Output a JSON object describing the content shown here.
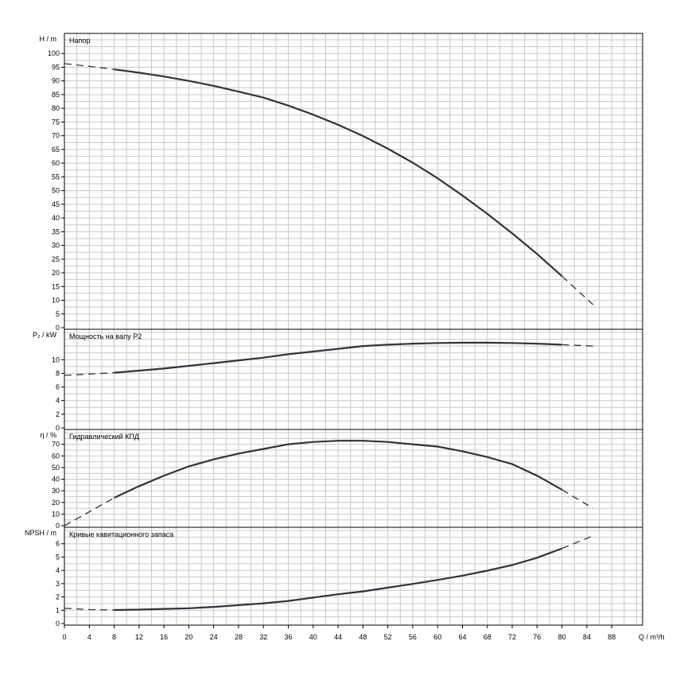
{
  "chart_data": {
    "type": "line",
    "x_axis": {
      "label": "Q / m³/h",
      "min": 0,
      "max": 92,
      "ticks": [
        0,
        4,
        8,
        12,
        16,
        20,
        24,
        28,
        32,
        36,
        40,
        44,
        48,
        52,
        56,
        60,
        64,
        68,
        72,
        76,
        80,
        84,
        88
      ]
    },
    "grid": true,
    "panels": [
      {
        "id": "head",
        "title": "Напор",
        "ylabel": "H / m",
        "ylim": [
          0,
          105
        ],
        "yticks": [
          0,
          5,
          10,
          15,
          20,
          25,
          30,
          35,
          40,
          45,
          50,
          55,
          60,
          65,
          70,
          75,
          80,
          85,
          90,
          95,
          100
        ],
        "solid_range": [
          8,
          80
        ],
        "points": [
          [
            0,
            96.3
          ],
          [
            4,
            95.3
          ],
          [
            8,
            94.2
          ],
          [
            12,
            93.0
          ],
          [
            16,
            91.6
          ],
          [
            20,
            90.0
          ],
          [
            24,
            88.2
          ],
          [
            28,
            86.1
          ],
          [
            32,
            83.9
          ],
          [
            36,
            81.0
          ],
          [
            40,
            77.7
          ],
          [
            44,
            74.0
          ],
          [
            48,
            69.9
          ],
          [
            52,
            65.3
          ],
          [
            56,
            60.2
          ],
          [
            60,
            54.5
          ],
          [
            64,
            48.2
          ],
          [
            68,
            41.5
          ],
          [
            72,
            34.4
          ],
          [
            76,
            26.9
          ],
          [
            80,
            18.8
          ],
          [
            82.5,
            13.6
          ],
          [
            85,
            8.4
          ]
        ]
      },
      {
        "id": "power",
        "title": "Мощность на валу P2",
        "ylabel": "P₂ / kW",
        "ylim": [
          0,
          14
        ],
        "yticks": [
          0,
          2,
          4,
          6,
          8,
          10
        ],
        "solid_range": [
          8,
          80
        ],
        "points": [
          [
            0,
            7.7
          ],
          [
            4,
            7.9
          ],
          [
            8,
            8.1
          ],
          [
            12,
            8.4
          ],
          [
            16,
            8.7
          ],
          [
            20,
            9.1
          ],
          [
            24,
            9.5
          ],
          [
            28,
            9.9
          ],
          [
            32,
            10.3
          ],
          [
            36,
            10.8
          ],
          [
            40,
            11.2
          ],
          [
            44,
            11.6
          ],
          [
            48,
            12.0
          ],
          [
            52,
            12.2
          ],
          [
            56,
            12.35
          ],
          [
            60,
            12.45
          ],
          [
            64,
            12.5
          ],
          [
            68,
            12.5
          ],
          [
            72,
            12.45
          ],
          [
            76,
            12.35
          ],
          [
            80,
            12.2
          ],
          [
            85,
            12.0
          ]
        ]
      },
      {
        "id": "efficiency",
        "title": "Гидравлический КПД",
        "ylabel": "η / %",
        "ylim": [
          0,
          80
        ],
        "yticks": [
          0,
          10,
          20,
          30,
          40,
          50,
          60,
          70
        ],
        "solid_range": [
          8,
          80
        ],
        "points": [
          [
            0,
            0
          ],
          [
            4,
            12
          ],
          [
            8,
            24
          ],
          [
            12,
            34
          ],
          [
            16,
            43
          ],
          [
            20,
            51
          ],
          [
            24,
            57
          ],
          [
            28,
            62
          ],
          [
            32,
            66
          ],
          [
            36,
            70
          ],
          [
            40,
            72
          ],
          [
            44,
            73
          ],
          [
            48,
            73
          ],
          [
            52,
            72
          ],
          [
            56,
            70
          ],
          [
            60,
            68
          ],
          [
            64,
            64
          ],
          [
            68,
            59
          ],
          [
            72,
            53
          ],
          [
            76,
            43
          ],
          [
            80,
            31
          ],
          [
            85,
            15
          ]
        ]
      },
      {
        "id": "npsh",
        "title": "Кривые кавитационного запаса",
        "ylabel": "NPSH / m",
        "ylim": [
          0,
          7
        ],
        "yticks": [
          0,
          1,
          2,
          3,
          4,
          5,
          6
        ],
        "solid_range": [
          8,
          80
        ],
        "points": [
          [
            0,
            1.15
          ],
          [
            4,
            1.05
          ],
          [
            8,
            1.02
          ],
          [
            12,
            1.05
          ],
          [
            16,
            1.1
          ],
          [
            20,
            1.15
          ],
          [
            24,
            1.25
          ],
          [
            28,
            1.38
          ],
          [
            32,
            1.52
          ],
          [
            36,
            1.7
          ],
          [
            40,
            1.95
          ],
          [
            44,
            2.2
          ],
          [
            48,
            2.42
          ],
          [
            52,
            2.7
          ],
          [
            56,
            2.98
          ],
          [
            60,
            3.28
          ],
          [
            64,
            3.6
          ],
          [
            68,
            3.98
          ],
          [
            72,
            4.4
          ],
          [
            76,
            4.95
          ],
          [
            80,
            5.65
          ],
          [
            85,
            6.6
          ]
        ]
      }
    ]
  }
}
